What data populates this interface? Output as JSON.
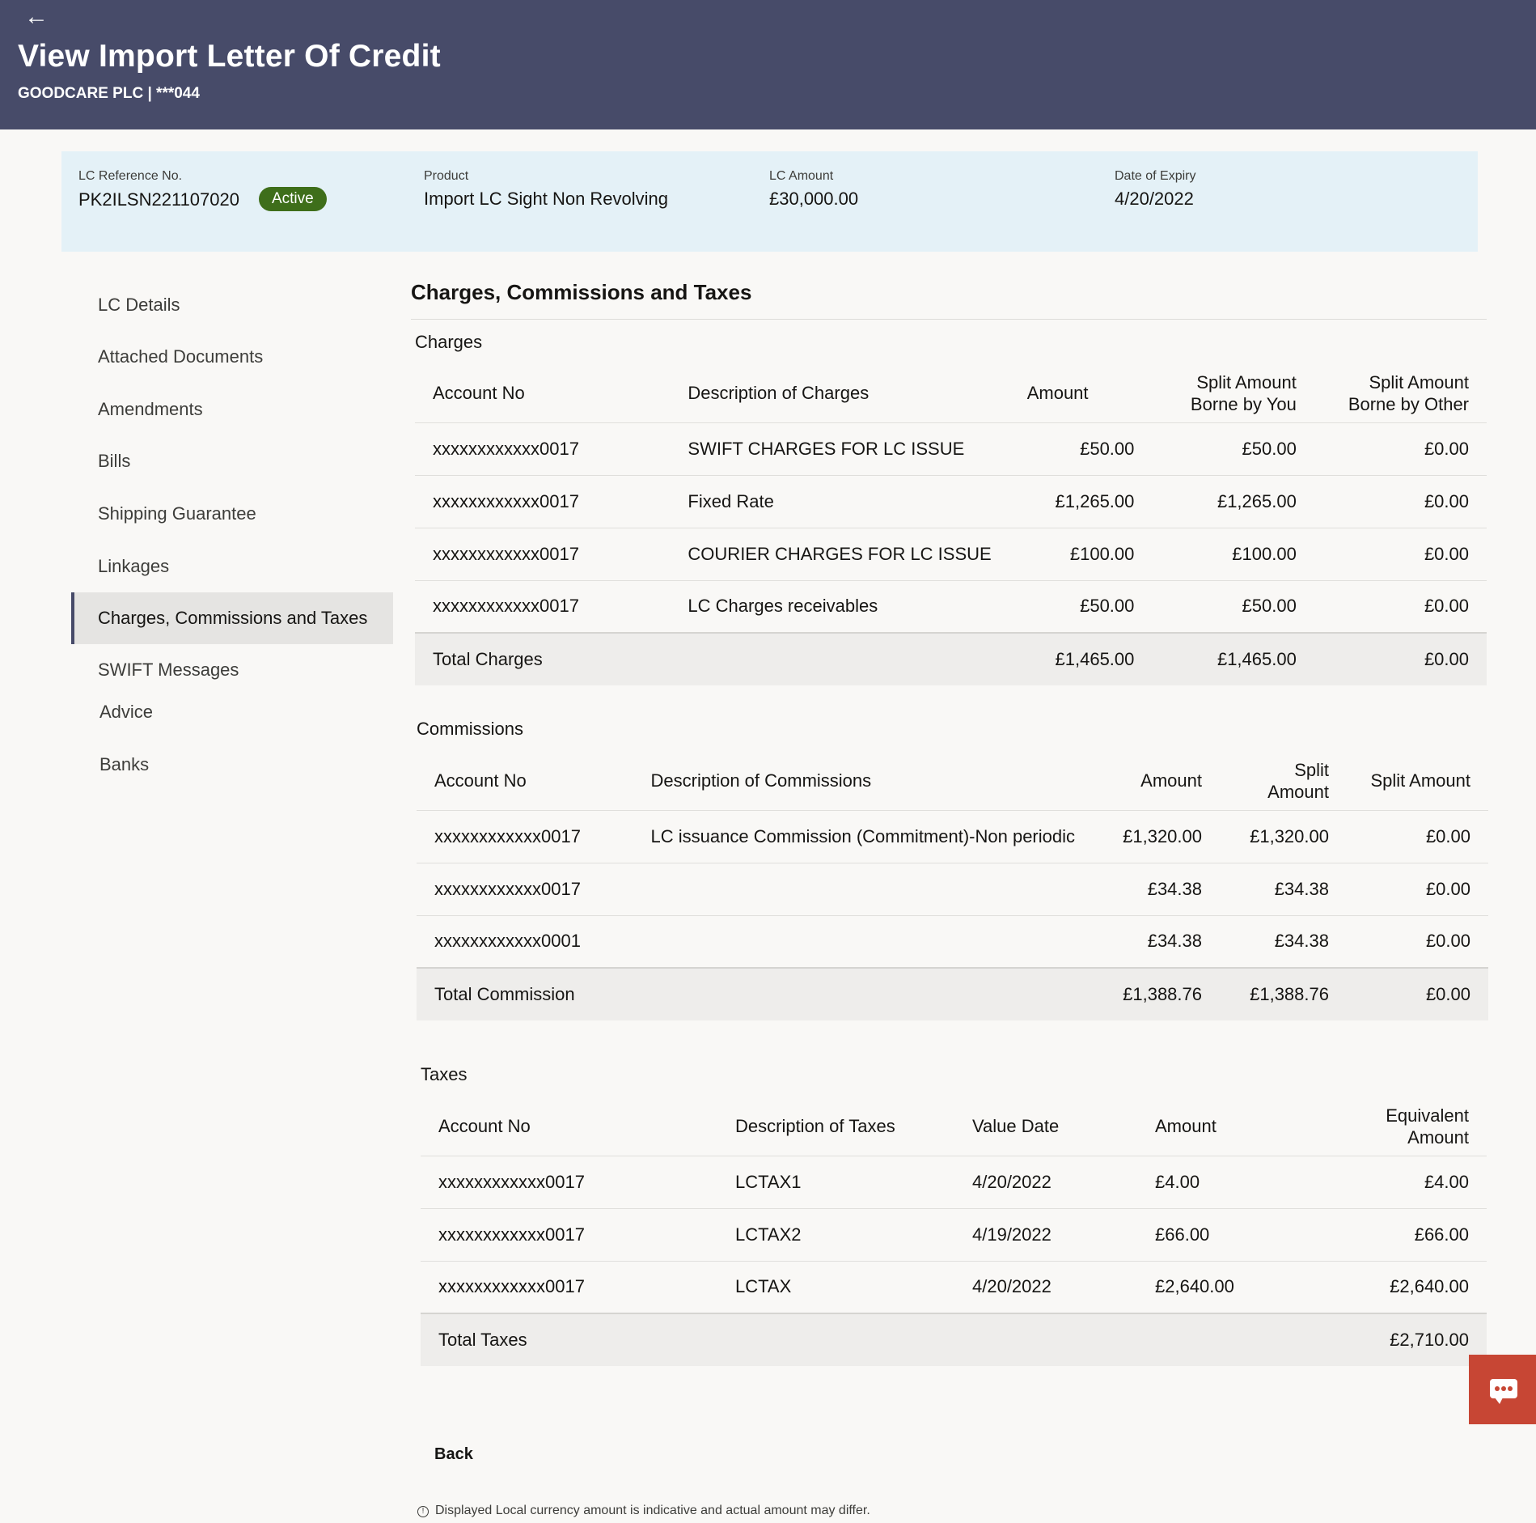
{
  "header": {
    "back_icon": "arrow-left-icon",
    "title": "View Import Letter Of Credit",
    "subtitle": "GOODCARE PLC | ***044"
  },
  "summary": {
    "reference_label": "LC Reference No.",
    "reference_value": "PK2ILSN221107020",
    "status": "Active",
    "product_label": "Product",
    "product_value": "Import LC Sight Non Revolving",
    "amount_label": "LC Amount",
    "amount_value": "£30,000.00",
    "expiry_label": "Date of Expiry",
    "expiry_value": "4/20/2022"
  },
  "sidebar": {
    "items": [
      {
        "label": "LC Details"
      },
      {
        "label": "Attached Documents"
      },
      {
        "label": "Amendments"
      },
      {
        "label": "Bills"
      },
      {
        "label": "Shipping Guarantee"
      },
      {
        "label": "Linkages"
      },
      {
        "label": "Charges, Commissions and Taxes"
      },
      {
        "label": "SWIFT Messages"
      },
      {
        "label": "Advice"
      },
      {
        "label": "Banks"
      }
    ],
    "active_index": 6
  },
  "content": {
    "title": "Charges, Commissions and Taxes",
    "charges": {
      "title": "Charges",
      "headers": {
        "account": "Account No",
        "description": "Description of Charges",
        "amount": "Amount",
        "split_you": "Split Amount Borne by You",
        "split_other": "Split Amount Borne by Other"
      },
      "rows": [
        {
          "account": "xxxxxxxxxxxx0017",
          "description": "SWIFT CHARGES FOR LC ISSUE",
          "amount": "£50.00",
          "split_you": "£50.00",
          "split_other": "£0.00"
        },
        {
          "account": "xxxxxxxxxxxx0017",
          "description": "Fixed Rate",
          "amount": "£1,265.00",
          "split_you": "£1,265.00",
          "split_other": "£0.00"
        },
        {
          "account": "xxxxxxxxxxxx0017",
          "description": "COURIER CHARGES FOR LC ISSUE",
          "amount": "£100.00",
          "split_you": "£100.00",
          "split_other": "£0.00"
        },
        {
          "account": "xxxxxxxxxxxx0017",
          "description": "LC Charges receivables",
          "amount": "£50.00",
          "split_you": "£50.00",
          "split_other": "£0.00"
        }
      ],
      "total": {
        "label": "Total Charges",
        "amount": "£1,465.00",
        "split_you": "£1,465.00",
        "split_other": "£0.00"
      }
    },
    "commissions": {
      "title": "Commissions",
      "headers": {
        "account": "Account No",
        "description": "Description of Commissions",
        "amount": "Amount",
        "split_1": "Split Amount",
        "split_2": "Split Amount"
      },
      "rows": [
        {
          "account": "xxxxxxxxxxxx0017",
          "description": "LC issuance Commission (Commitment)-Non periodic",
          "amount": "£1,320.00",
          "split_1": "£1,320.00",
          "split_2": "£0.00"
        },
        {
          "account": "xxxxxxxxxxxx0017",
          "description": "",
          "amount": "£34.38",
          "split_1": "£34.38",
          "split_2": "£0.00"
        },
        {
          "account": "xxxxxxxxxxxx0001",
          "description": "",
          "amount": "£34.38",
          "split_1": "£34.38",
          "split_2": "£0.00"
        }
      ],
      "total": {
        "label": "Total Commission",
        "amount": "£1,388.76",
        "split_1": "£1,388.76",
        "split_2": "£0.00"
      }
    },
    "taxes": {
      "title": "Taxes",
      "headers": {
        "account": "Account No",
        "description": "Description of Taxes",
        "value_date": "Value Date",
        "amount": "Amount",
        "equivalent": "Equivalent Amount"
      },
      "rows": [
        {
          "account": "xxxxxxxxxxxx0017",
          "description": "LCTAX1",
          "value_date": "4/20/2022",
          "amount": "£4.00",
          "equivalent": "£4.00"
        },
        {
          "account": "xxxxxxxxxxxx0017",
          "description": "LCTAX2",
          "value_date": "4/19/2022",
          "amount": "£66.00",
          "equivalent": "£66.00"
        },
        {
          "account": "xxxxxxxxxxxx0017",
          "description": "LCTAX",
          "value_date": "4/20/2022",
          "amount": "£2,640.00",
          "equivalent": "£2,640.00"
        }
      ],
      "total": {
        "label": "Total Taxes",
        "equivalent": "£2,710.00"
      }
    }
  },
  "back_button": "Back",
  "note": "Displayed Local currency amount is indicative and actual amount may differ.",
  "note_icon": "info-circle-icon",
  "chat_icon": "chat-bubble-icon",
  "colors": {
    "header_bg": "#474b69",
    "summary_bg": "#e4f1f7",
    "status_badge": "#3e6e1a",
    "chat_button": "#c74634"
  }
}
